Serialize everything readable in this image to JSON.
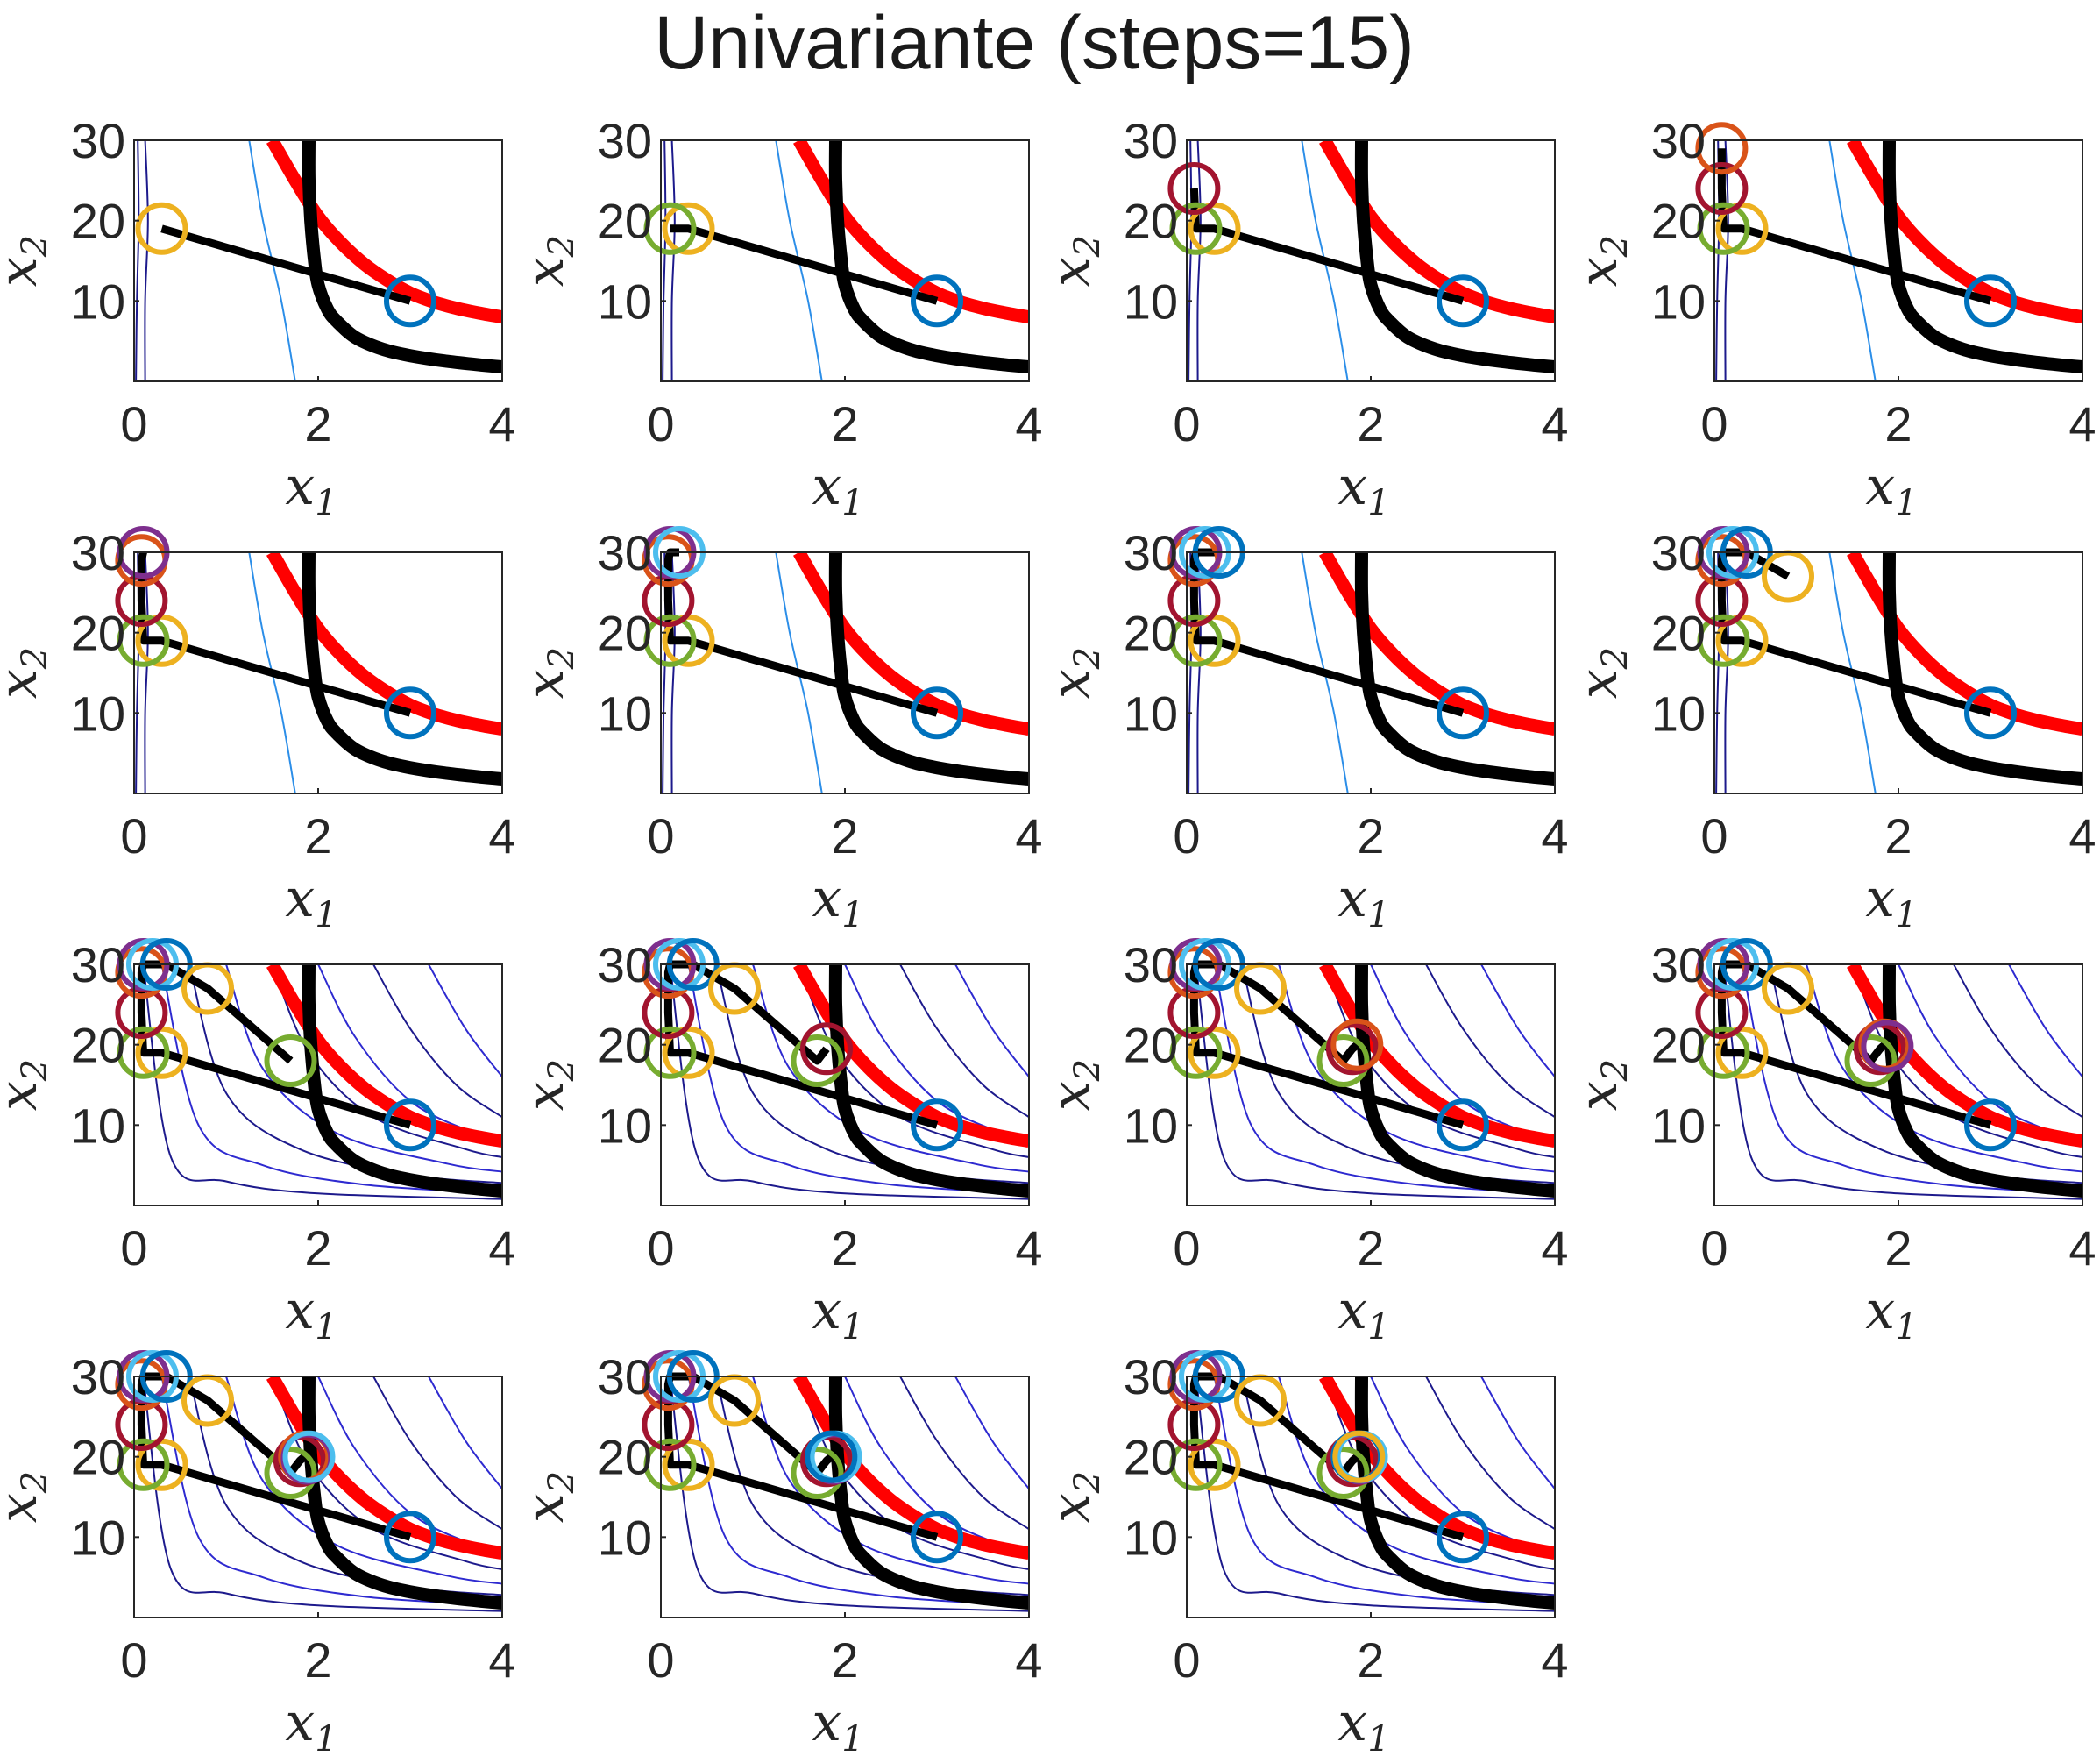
{
  "figure": {
    "title": "Univariante (steps=15)"
  },
  "chart_data": {
    "type": "line",
    "title": "Univariante (steps=15)",
    "panel_count": 15,
    "grid": false,
    "xlabel": "x1",
    "ylabel": "x2",
    "xlabel_base": "x",
    "xlabel_sub": "1",
    "ylabel_base": "x",
    "ylabel_sub": "2",
    "xlim": [
      0,
      4
    ],
    "ylim": [
      0,
      30
    ],
    "xticks": [
      "0",
      "2",
      "4"
    ],
    "yticks": [
      "10",
      "20",
      "30"
    ],
    "constraint_red": {
      "color": "#ff0000",
      "x": [
        1.5,
        1.75,
        2.0,
        2.25,
        2.5,
        2.75,
        3.0,
        3.25,
        3.5,
        3.75,
        4.0
      ],
      "y": [
        30.0,
        25.0,
        20.5,
        17.2,
        14.6,
        12.6,
        11.0,
        9.9,
        9.1,
        8.5,
        8.0
      ]
    },
    "constraint_black": {
      "color": "#000000",
      "x": [
        1.9,
        1.9,
        1.92,
        1.96,
        2.0,
        2.1,
        2.2,
        2.4,
        2.7,
        3.0,
        3.4,
        3.8,
        4.0
      ],
      "y": [
        30.0,
        25.0,
        20.0,
        15.0,
        12.0,
        9.0,
        7.5,
        5.5,
        4.0,
        3.2,
        2.5,
        2.0,
        1.8
      ]
    },
    "start_point": {
      "x": 3.0,
      "y": 10.0
    },
    "path_color": "#000000",
    "path_x": [
      3.0,
      0.3,
      0.1,
      0.08,
      0.08,
      0.1,
      0.2,
      0.35,
      0.8,
      1.7,
      1.8,
      1.85,
      1.88,
      1.9,
      1.85,
      1.87
    ],
    "path_y": [
      10.0,
      19.0,
      19.0,
      24.0,
      29.0,
      30.0,
      30.0,
      30.0,
      27.0,
      18.0,
      19.5,
      20.0,
      19.8,
      20.0,
      20.0,
      20.0
    ],
    "iterate_colors": [
      "#0072bd",
      "#edb120",
      "#77ac30",
      "#a2142f",
      "#d95319",
      "#7e2f8e",
      "#4dbeee",
      "#0072bd",
      "#edb120",
      "#77ac30",
      "#a2142f",
      "#d95319",
      "#7e2f8e",
      "#4dbeee",
      "#0072bd",
      "#edb120"
    ],
    "contour_colors": [
      "#1d1a8c",
      "#2e2ad0",
      "#2c8ee8",
      "#f0e61a"
    ],
    "contours_early": [
      {
        "color": "#1d1a8c",
        "x": [
          0.02,
          0.03,
          0.05,
          0.04
        ],
        "y": [
          0,
          10,
          20,
          30
        ]
      },
      {
        "color": "#1d1a8c",
        "x": [
          0.12,
          0.12,
          0.15,
          0.12
        ],
        "y": [
          0,
          10,
          20,
          30
        ]
      },
      {
        "color": "#2c8ee8",
        "x": [
          1.75,
          1.6,
          1.4,
          1.25
        ],
        "y": [
          0,
          10,
          20,
          30
        ]
      },
      {
        "color": "#f0e61a",
        "x": [
          4.0,
          4.0
        ],
        "y": [
          29,
          30
        ]
      }
    ],
    "contours_late": [
      {
        "color": "#1d1a8c",
        "x": [
          0.1,
          0.4,
          1.0,
          2.0,
          4.0
        ],
        "y": [
          30,
          6,
          3,
          1.5,
          0.8
        ]
      },
      {
        "color": "#2e2ad0",
        "x": [
          0.3,
          0.7,
          1.4,
          2.5,
          4.0
        ],
        "y": [
          30,
          10,
          5,
          2.6,
          1.5
        ]
      },
      {
        "color": "#1d1a8c",
        "x": [
          0.6,
          1.0,
          1.8,
          3.0,
          4.0
        ],
        "y": [
          30,
          14,
          7,
          3.8,
          2.8
        ]
      },
      {
        "color": "#2e2ad0",
        "x": [
          1.0,
          1.4,
          2.2,
          3.4,
          4.0
        ],
        "y": [
          30,
          17,
          9,
          5.2,
          4.2
        ]
      },
      {
        "color": "#1d1a8c",
        "x": [
          1.5,
          1.9,
          2.6,
          3.6,
          4.0
        ],
        "y": [
          30,
          19,
          11,
          7,
          6
        ]
      },
      {
        "color": "#2e2ad0",
        "x": [
          2.0,
          2.4,
          3.0,
          3.7,
          4.0
        ],
        "y": [
          30,
          21,
          13,
          9,
          8
        ]
      },
      {
        "color": "#1d1a8c",
        "x": [
          2.6,
          3.0,
          3.5,
          4.0
        ],
        "y": [
          30,
          22,
          15,
          11
        ]
      },
      {
        "color": "#2e2ad0",
        "x": [
          3.2,
          3.6,
          4.0
        ],
        "y": [
          30,
          22,
          16
        ]
      }
    ]
  }
}
